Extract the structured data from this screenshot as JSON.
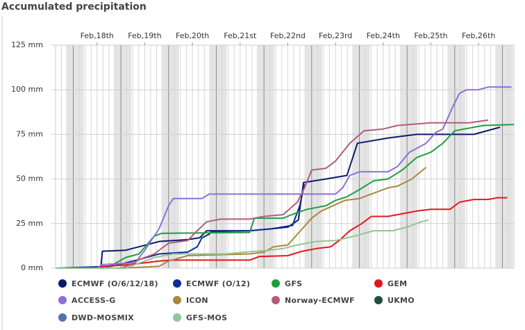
{
  "chart_data": {
    "type": "line",
    "title": "Accumulated precipitation",
    "xlim": [
      17.13,
      26.74
    ],
    "xticks": [
      {
        "value": 18,
        "label": "Feb,18th"
      },
      {
        "value": 19,
        "label": "Feb,19th"
      },
      {
        "value": 20,
        "label": "Feb,20th"
      },
      {
        "value": 21,
        "label": "Feb,21st"
      },
      {
        "value": 22,
        "label": "Feb,22nd"
      },
      {
        "value": 23,
        "label": "Feb,23rd"
      },
      {
        "value": 24,
        "label": "Feb,24th"
      },
      {
        "value": 25,
        "label": "Feb,25th"
      },
      {
        "value": 26,
        "label": "Feb,26th"
      }
    ],
    "ylim": [
      0,
      125
    ],
    "yticks": [
      {
        "value": 0,
        "label": "0 mm"
      },
      {
        "value": 25,
        "label": "25 mm"
      },
      {
        "value": 50,
        "label": "50 mm"
      },
      {
        "value": 75,
        "label": "75 mm"
      },
      {
        "value": 100,
        "label": "100 mm"
      },
      {
        "value": 125,
        "label": "125 mm"
      }
    ],
    "grid": true,
    "legend": "bottom",
    "series": [
      {
        "name": "ECMWF (O/6/12/18)",
        "color": "#0b1a6b",
        "x": [
          17.13,
          18.08,
          18.11,
          18.59,
          18.88,
          19.31,
          19.9,
          20.15,
          20.3,
          21.2,
          21.64,
          22.0,
          22.22,
          22.33,
          22.8,
          23.24,
          23.46,
          24.12,
          24.7,
          25.9,
          26.45
        ],
        "values": [
          0,
          0,
          9.5,
          10,
          12,
          15,
          16,
          17,
          21,
          21,
          22,
          23,
          27,
          48,
          50,
          52,
          70,
          73,
          75,
          75,
          79
        ]
      },
      {
        "name": "ECMWF (O/12)",
        "color": "#102a96",
        "x": [
          17.13,
          18.3,
          18.6,
          18.9,
          19.3,
          19.9,
          20.1,
          20.2,
          20.35,
          20.4,
          21.21,
          21.64,
          22.1,
          22.25,
          22.35
        ],
        "values": [
          0,
          1,
          3,
          5,
          8,
          9,
          12,
          17,
          19,
          20.5,
          21,
          22,
          24,
          35,
          47
        ]
      },
      {
        "name": "GFS",
        "color": "#1e9e3e",
        "x": [
          17.13,
          18.2,
          18.6,
          18.88,
          19.2,
          19.35,
          21.2,
          21.3,
          21.9,
          22.08,
          22.4,
          22.8,
          23.0,
          23.24,
          23.5,
          23.8,
          24.1,
          24.4,
          24.7,
          25.0,
          25.25,
          25.5,
          25.7,
          26.1,
          26.74
        ],
        "values": [
          0,
          0,
          6,
          8,
          18,
          19.5,
          20,
          28,
          28,
          30,
          33,
          35,
          38,
          40,
          44,
          49,
          50,
          55,
          62,
          65,
          70,
          77,
          78,
          80,
          80.5
        ]
      },
      {
        "name": "GEM",
        "color": "#e8141c",
        "x": [
          17.13,
          18.0,
          18.1,
          18.7,
          19.3,
          19.6,
          21.2,
          21.4,
          22.0,
          22.3,
          22.6,
          22.9,
          23.1,
          23.3,
          23.55,
          23.75,
          24.1,
          24.5,
          24.7,
          25.0,
          25.4,
          25.6,
          25.9,
          26.2,
          26.4,
          26.6
        ],
        "values": [
          0,
          0,
          1,
          2,
          4,
          4.5,
          4.5,
          6.5,
          7,
          9.5,
          11,
          12,
          16,
          21,
          25,
          29,
          29,
          31,
          32,
          33,
          33,
          37,
          38.5,
          38.5,
          39.5,
          39.5
        ]
      },
      {
        "name": "ACCESS-G",
        "color": "#8e6fd6",
        "x": [
          17.13,
          18.0,
          18.1,
          18.8,
          19.0,
          19.3,
          19.5,
          19.6,
          20.2,
          20.35,
          23.0,
          23.15,
          23.3,
          23.5,
          24.1,
          24.3,
          24.55,
          24.9,
          25.1,
          25.25,
          25.45,
          25.6,
          25.75,
          26.0,
          26.2,
          26.69
        ],
        "values": [
          0,
          0,
          2,
          3,
          10,
          22,
          35,
          39,
          39,
          41.5,
          41.5,
          45,
          52,
          54,
          54,
          57,
          65,
          70,
          76,
          78,
          90,
          98,
          100,
          100,
          101.5,
          101.5
        ]
      },
      {
        "name": "ICON",
        "color": "#a8893a",
        "x": [
          17.13,
          18.5,
          19.3,
          19.5,
          19.9,
          21.2,
          21.5,
          21.7,
          22.0,
          22.1,
          22.3,
          22.5,
          22.7,
          22.95,
          23.2,
          23.5,
          23.8,
          24.1,
          24.3,
          24.6,
          24.9
        ],
        "values": [
          0,
          0,
          1,
          4,
          7,
          8,
          9,
          12,
          13,
          16,
          22,
          28,
          32,
          35,
          38,
          39,
          42,
          45,
          46,
          50,
          56.5
        ]
      },
      {
        "name": "Norway-ECMWF",
        "color": "#b35c79",
        "x": [
          17.13,
          18.5,
          18.7,
          18.9,
          19.2,
          19.5,
          19.9,
          20.1,
          20.3,
          20.6,
          21.2,
          21.5,
          21.9,
          22.2,
          22.35,
          22.5,
          22.8,
          23.0,
          23.3,
          23.6,
          24.0,
          24.3,
          25.0,
          25.8,
          26.2
        ],
        "values": [
          0,
          0,
          2,
          5,
          8,
          14,
          15.5,
          21,
          26,
          27.5,
          27.5,
          29,
          30,
          37,
          45,
          55,
          56,
          60,
          70,
          77,
          78,
          80,
          81.5,
          81.5,
          83
        ]
      },
      {
        "name": "UKMO",
        "color": "#1f4f3b",
        "x": [],
        "values": []
      },
      {
        "name": "DWD-MOSMIX",
        "color": "#4f76aa",
        "x": [],
        "values": []
      },
      {
        "name": "GFS-MOS",
        "color": "#93c493",
        "x": [
          17.13,
          18.6,
          18.9,
          19.2,
          19.6,
          20.7,
          21.1,
          21.6,
          21.9,
          22.2,
          22.6,
          23.0,
          23.4,
          23.8,
          24.2,
          24.5,
          24.8,
          24.95
        ],
        "values": [
          0,
          0,
          3,
          6,
          8,
          8,
          9,
          10,
          11,
          13,
          15,
          15.5,
          18,
          21,
          21,
          23,
          26,
          27
        ]
      }
    ]
  }
}
